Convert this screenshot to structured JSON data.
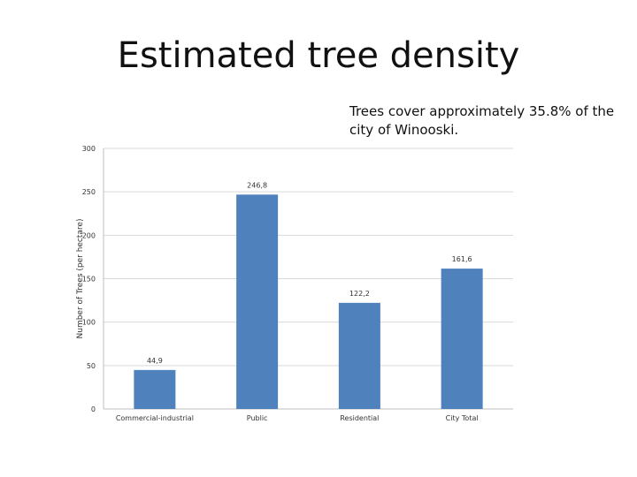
{
  "slide": {
    "title": "Estimated tree density",
    "annotation": "Trees cover approximately 35.8% of the city of Winooski."
  },
  "chart_data": {
    "type": "bar",
    "categories": [
      "Commercial-industrial",
      "Public",
      "Residential",
      "City Total"
    ],
    "values": [
      44.9,
      246.8,
      122.2,
      161.6
    ],
    "data_labels": [
      "44,9",
      "246,8",
      "122,2",
      "161,6"
    ],
    "ylabel": "Number of Trees (per hectare)",
    "xlabel": "",
    "ylim": [
      0,
      300
    ],
    "yticks": [
      0,
      50,
      100,
      150,
      200,
      250,
      300
    ],
    "grid": true,
    "bar_color": "#4f81bd",
    "grid_color": "#d9d9d9"
  }
}
